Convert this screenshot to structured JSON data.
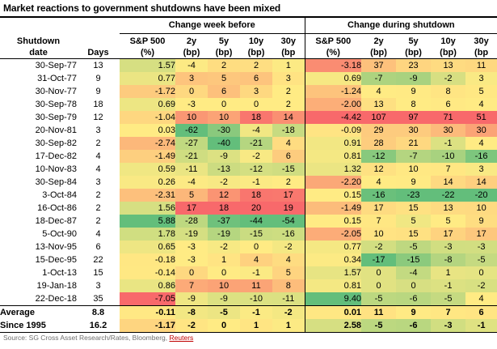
{
  "title": "Market reactions to government shutdowns have been mixed",
  "groups": {
    "week_before": "Change week before",
    "during": "Change during shutdown"
  },
  "col_headers": [
    {
      "line1": "Shutdown",
      "line2": "date"
    },
    {
      "line1": "",
      "line2": "Days"
    },
    {
      "line1": "S&P 500",
      "line2": "(%)"
    },
    {
      "line1": "2y",
      "line2": "(bp)"
    },
    {
      "line1": "5y",
      "line2": "(bp)"
    },
    {
      "line1": "10y",
      "line2": "(bp)"
    },
    {
      "line1": "30y",
      "line2": "(bp"
    },
    {
      "line1": "S&P 500",
      "line2": "(%)"
    },
    {
      "line1": "2y",
      "line2": "(bp)"
    },
    {
      "line1": "5y",
      "line2": "(bp)"
    },
    {
      "line1": "10y",
      "line2": "(bp)"
    },
    {
      "line1": "30y",
      "line2": "(bp"
    }
  ],
  "chart_data": {
    "type": "table",
    "note": "heatmap-colored table; S&P columns colored red(min)-yellow-green(max), bp columns colored green(min)-yellow-red(max), per-column scale with median midpoint"
  },
  "rows": [
    {
      "date": "30-Sep-77",
      "days": "13",
      "week_before": [
        "1.57",
        "-4",
        "2",
        "2",
        "1"
      ],
      "during": [
        "-3.18",
        "37",
        "23",
        "13",
        "11"
      ]
    },
    {
      "date": "31-Oct-77",
      "days": "9",
      "week_before": [
        "0.77",
        "3",
        "5",
        "6",
        "3"
      ],
      "during": [
        "0.69",
        "-7",
        "-9",
        "-2",
        "3"
      ]
    },
    {
      "date": "30-Nov-77",
      "days": "9",
      "week_before": [
        "-1.72",
        "0",
        "6",
        "3",
        "2"
      ],
      "during": [
        "-1.24",
        "4",
        "9",
        "8",
        "5"
      ]
    },
    {
      "date": "30-Sep-78",
      "days": "18",
      "week_before": [
        "0.69",
        "-3",
        "0",
        "0",
        "2"
      ],
      "during": [
        "-2.00",
        "13",
        "8",
        "6",
        "4"
      ]
    },
    {
      "date": "30-Sep-79",
      "days": "12",
      "week_before": [
        "-1.04",
        "10",
        "10",
        "18",
        "14"
      ],
      "during": [
        "-4.42",
        "107",
        "97",
        "71",
        "51"
      ]
    },
    {
      "date": "20-Nov-81",
      "days": "3",
      "week_before": [
        "0.03",
        "-62",
        "-30",
        "-4",
        "-18"
      ],
      "during": [
        "-0.09",
        "29",
        "30",
        "30",
        "30"
      ]
    },
    {
      "date": "30-Sep-82",
      "days": "2",
      "week_before": [
        "-2.74",
        "-27",
        "-40",
        "-21",
        "4"
      ],
      "during": [
        "0.91",
        "28",
        "21",
        "-1",
        "4"
      ]
    },
    {
      "date": "17-Dec-82",
      "days": "4",
      "week_before": [
        "-1.49",
        "-21",
        "-9",
        "-2",
        "6"
      ],
      "during": [
        "0.81",
        "-12",
        "-7",
        "-10",
        "-16"
      ]
    },
    {
      "date": "10-Nov-83",
      "days": "4",
      "week_before": [
        "0.59",
        "-11",
        "-13",
        "-12",
        "-15"
      ],
      "during": [
        "1.32",
        "12",
        "10",
        "7",
        "3"
      ]
    },
    {
      "date": "30-Sep-84",
      "days": "3",
      "week_before": [
        "0.26",
        "-4",
        "-2",
        "-1",
        "2"
      ],
      "during": [
        "-2.20",
        "4",
        "9",
        "14",
        "14"
      ]
    },
    {
      "date": "3-Oct-84",
      "days": "2",
      "week_before": [
        "-2.31",
        "5",
        "12",
        "18",
        "17"
      ],
      "during": [
        "0.15",
        "-16",
        "-23",
        "-22",
        "-20"
      ]
    },
    {
      "date": "16-Oct-86",
      "days": "2",
      "week_before": [
        "1.56",
        "17",
        "18",
        "20",
        "19"
      ],
      "during": [
        "-1.49",
        "17",
        "15",
        "13",
        "10"
      ]
    },
    {
      "date": "18-Dec-87",
      "days": "2",
      "week_before": [
        "5.88",
        "-28",
        "-37",
        "-44",
        "-54"
      ],
      "during": [
        "0.15",
        "7",
        "5",
        "5",
        "9"
      ]
    },
    {
      "date": "5-Oct-90",
      "days": "4",
      "week_before": [
        "1.78",
        "-19",
        "-19",
        "-15",
        "-16"
      ],
      "during": [
        "-2.05",
        "10",
        "15",
        "17",
        "17"
      ]
    },
    {
      "date": "13-Nov-95",
      "days": "6",
      "week_before": [
        "0.65",
        "-3",
        "-2",
        "0",
        "-2"
      ],
      "during": [
        "0.77",
        "-2",
        "-5",
        "-3",
        "-3"
      ]
    },
    {
      "date": "15-Dec-95",
      "days": "22",
      "week_before": [
        "-0.18",
        "-3",
        "1",
        "4",
        "4"
      ],
      "during": [
        "0.34",
        "-17",
        "-15",
        "-8",
        "-5"
      ]
    },
    {
      "date": "1-Oct-13",
      "days": "15",
      "week_before": [
        "-0.14",
        "0",
        "0",
        "-1",
        "5"
      ],
      "during": [
        "1.57",
        "0",
        "-4",
        "1",
        "0"
      ]
    },
    {
      "date": "19-Jan-18",
      "days": "3",
      "week_before": [
        "0.86",
        "7",
        "10",
        "11",
        "8"
      ],
      "during": [
        "0.81",
        "0",
        "0",
        "-1",
        "-2"
      ]
    },
    {
      "date": "22-Dec-18",
      "days": "35",
      "week_before": [
        "-7.05",
        "-9",
        "-9",
        "-10",
        "-11"
      ],
      "during": [
        "9.40",
        "-5",
        "-6",
        "-5",
        "4"
      ]
    }
  ],
  "stats": [
    {
      "label": "Average",
      "days": "8.8",
      "week_before": [
        "-0.11",
        "-8",
        "-5",
        "-1",
        "-2"
      ],
      "during": [
        "0.01",
        "11",
        "9",
        "7",
        "6"
      ]
    },
    {
      "label": "Since 1995",
      "days": "16.2",
      "week_before": [
        "-1.17",
        "-2",
        "0",
        "1",
        "1"
      ],
      "during": [
        "2.58",
        "-5",
        "-6",
        "-3",
        "-1"
      ]
    }
  ],
  "source": {
    "prefix": "Source: SG Cross Asset Research/Rates, Bloomberg, ",
    "link": "Reuters"
  },
  "colors": {
    "scale_min_red": "#F8696B",
    "scale_mid_yellow": "#FFEB84",
    "scale_max_green": "#63BE7B",
    "divider_black": "#000000",
    "link_red": "#C00000",
    "source_gray": "#6F6F6F"
  }
}
